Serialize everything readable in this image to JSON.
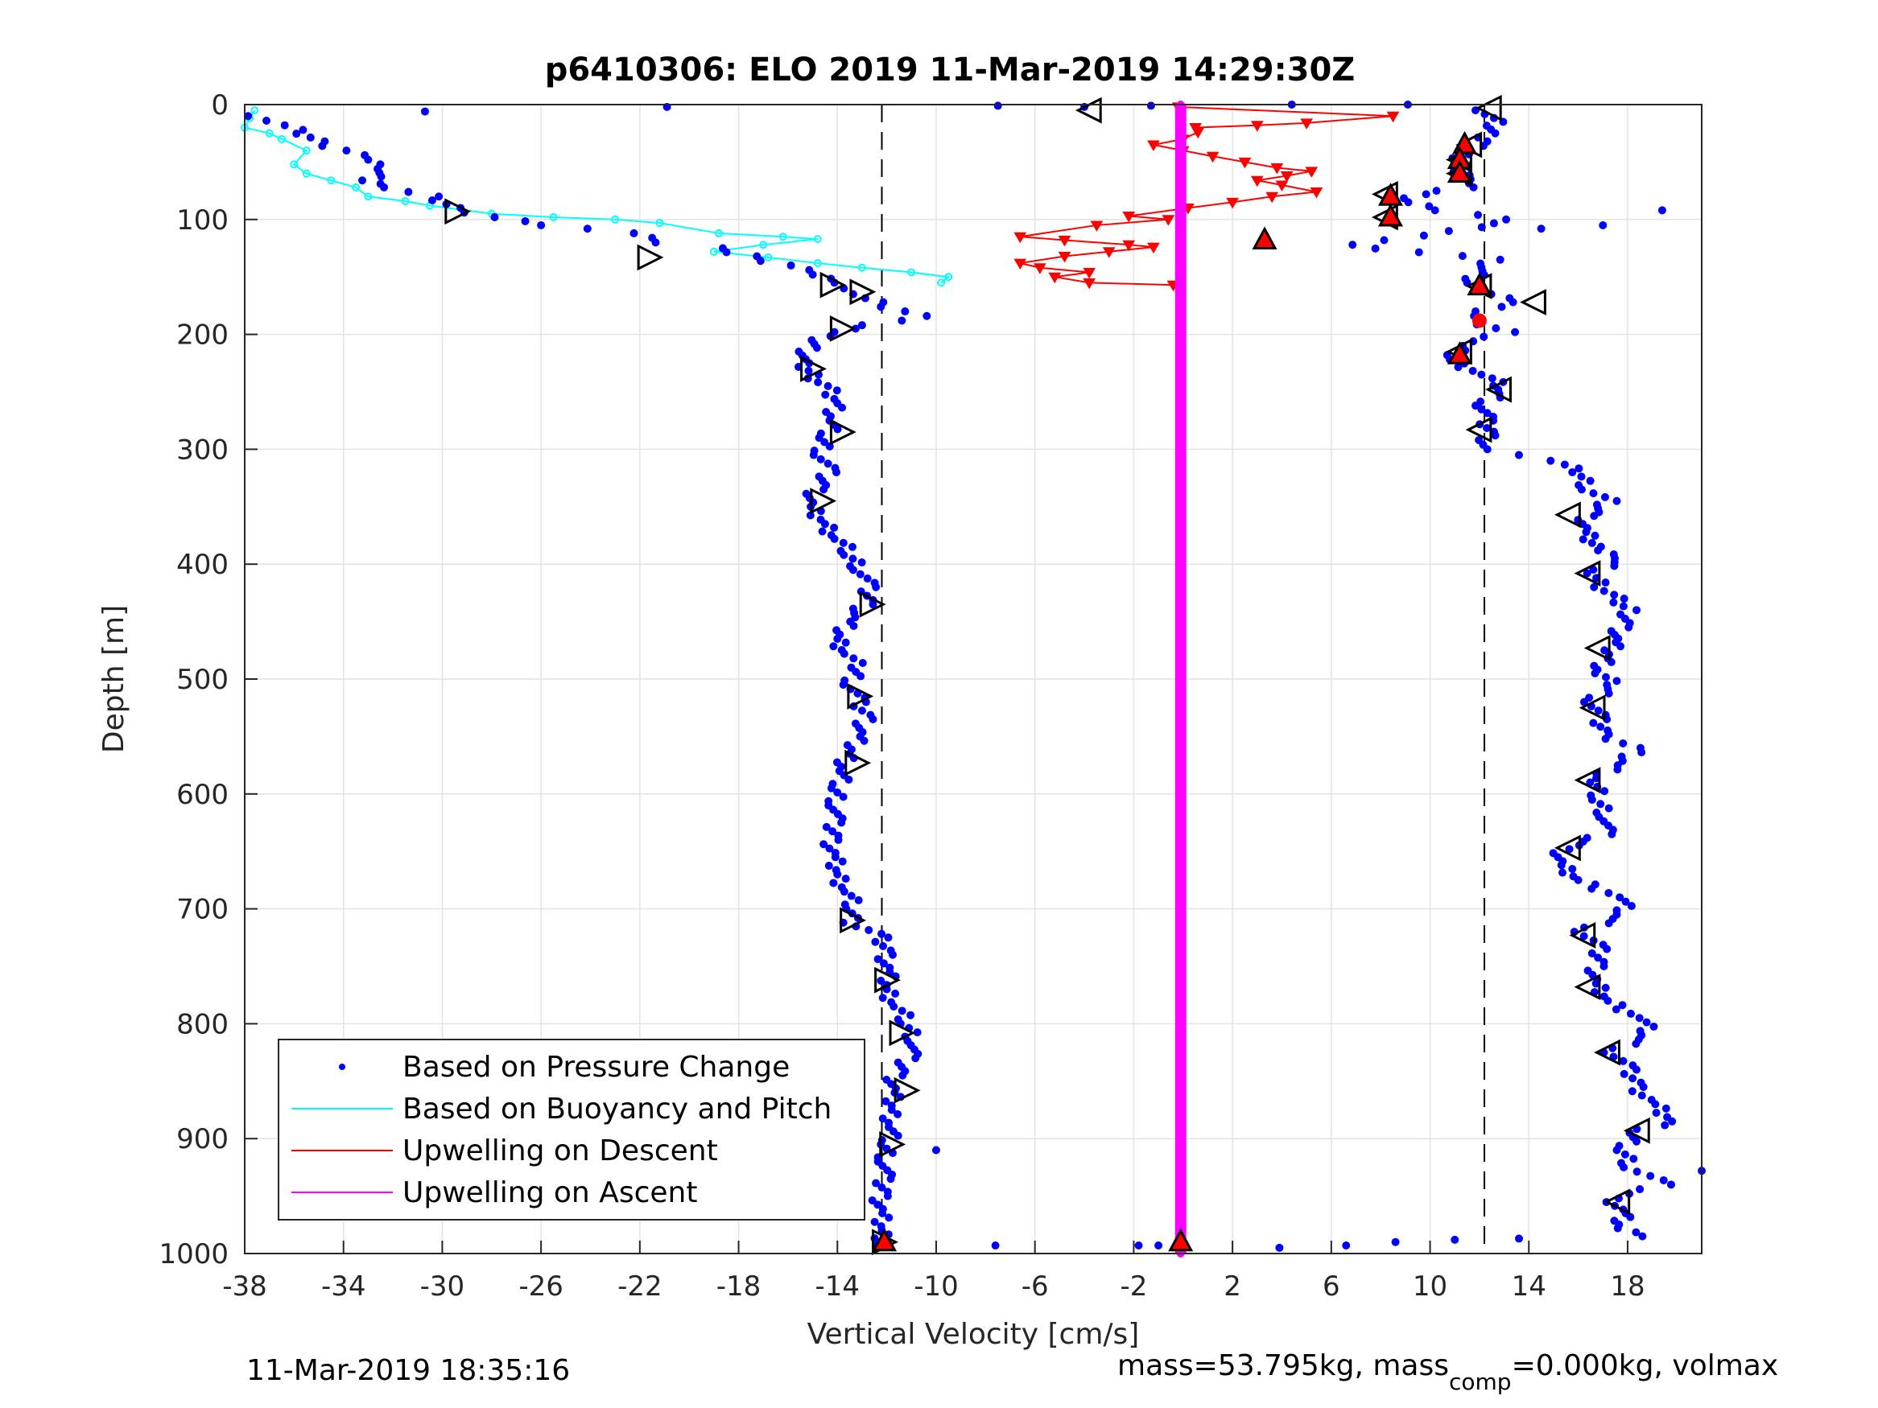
{
  "chart_data": {
    "type": "scatter",
    "title": "p6410306: ELO 2019 11-Mar-2019 14:29:30Z",
    "xlabel": "Vertical Velocity [cm/s]",
    "ylabel": "Depth [m]",
    "xlim": [
      -38,
      21
    ],
    "ylim": [
      0,
      1000
    ],
    "y_reversed": true,
    "x_ticks": [
      -38,
      -34,
      -30,
      -26,
      -22,
      -18,
      -14,
      -10,
      -6,
      -2,
      2,
      6,
      10,
      14,
      18
    ],
    "y_ticks": [
      0,
      100,
      200,
      300,
      400,
      500,
      600,
      700,
      800,
      900,
      1000
    ],
    "grid": true,
    "legend_position": "bottom-left",
    "legend": [
      {
        "label": "Based on Pressure Change",
        "color": "#0000ff",
        "style": "dot"
      },
      {
        "label": "Based on Buoyancy and Pitch",
        "color": "#00ffff",
        "style": "line"
      },
      {
        "label": "Upwelling on Descent",
        "color": "#ff0000",
        "style": "line"
      },
      {
        "label": "Upwelling on Ascent",
        "color": "#ff00ff",
        "style": "line"
      }
    ],
    "reference_lines": [
      {
        "x": -12.2,
        "style": "dashed",
        "color": "#000000"
      },
      {
        "x": 12.2,
        "style": "dashed",
        "color": "#000000"
      }
    ],
    "series": [
      {
        "name": "Based on Pressure Change",
        "color": "#0000ff",
        "descent": [
          [
            -37.5,
            10
          ],
          [
            -36,
            22
          ],
          [
            -35,
            32
          ],
          [
            -34,
            40
          ],
          [
            -33,
            48
          ],
          [
            -32.5,
            56
          ],
          [
            -33,
            66
          ],
          [
            -32,
            72
          ],
          [
            -30.5,
            80
          ],
          [
            -29.5,
            90
          ],
          [
            -28,
            98
          ],
          [
            -26,
            105
          ],
          [
            -24,
            108
          ],
          [
            -22,
            112
          ],
          [
            -21,
            120
          ],
          [
            -19,
            125
          ],
          [
            -17.5,
            132
          ],
          [
            -16,
            140
          ],
          [
            -15,
            148
          ],
          [
            -14,
            155
          ],
          [
            -13.5,
            160
          ],
          [
            -13,
            165
          ],
          [
            -12.5,
            172
          ],
          [
            -11.5,
            180
          ],
          [
            -10.5,
            184
          ],
          [
            -13,
            192
          ],
          [
            -14,
            198
          ],
          [
            -14.8,
            205
          ],
          [
            -15.2,
            215
          ],
          [
            -15.5,
            225
          ],
          [
            -15,
            235
          ],
          [
            -14.5,
            245
          ],
          [
            -14,
            260
          ],
          [
            -14.2,
            275
          ],
          [
            -14.5,
            290
          ],
          [
            -14.6,
            305
          ],
          [
            -14.4,
            320
          ],
          [
            -14.8,
            335
          ],
          [
            -15.2,
            350
          ],
          [
            -14.5,
            365
          ],
          [
            -14,
            378
          ],
          [
            -13.5,
            392
          ],
          [
            -13,
            405
          ],
          [
            -12.8,
            420
          ],
          [
            -12.8,
            435
          ],
          [
            -13.6,
            450
          ],
          [
            -14,
            465
          ],
          [
            -13.6,
            478
          ],
          [
            -13.2,
            490
          ],
          [
            -13.4,
            505
          ],
          [
            -13.2,
            520
          ],
          [
            -12.8,
            535
          ],
          [
            -13.2,
            550
          ],
          [
            -13.5,
            565
          ],
          [
            -13.8,
            580
          ],
          [
            -14,
            595
          ],
          [
            -14,
            610
          ],
          [
            -14.2,
            625
          ],
          [
            -14.2,
            640
          ],
          [
            -14.2,
            655
          ],
          [
            -14,
            670
          ],
          [
            -13.6,
            685
          ],
          [
            -13.4,
            700
          ],
          [
            -13.4,
            712
          ],
          [
            -12.3,
            725
          ],
          [
            -12,
            740
          ],
          [
            -12,
            755
          ],
          [
            -12,
            770
          ],
          [
            -11.6,
            785
          ],
          [
            -11.2,
            800
          ],
          [
            -10.8,
            815
          ],
          [
            -11.2,
            830
          ],
          [
            -11.6,
            845
          ],
          [
            -11.8,
            860
          ],
          [
            -11.8,
            875
          ],
          [
            -11.8,
            890
          ],
          [
            -12,
            905
          ],
          [
            -12,
            920
          ],
          [
            -12.2,
            935
          ],
          [
            -12.2,
            950
          ],
          [
            -12.3,
            965
          ],
          [
            -12.2,
            980
          ],
          [
            -12.1,
            990
          ]
        ],
        "ascent": [
          [
            12.2,
            5
          ],
          [
            12.6,
            15
          ],
          [
            12.4,
            25
          ],
          [
            12.2,
            32
          ],
          [
            11.4,
            40
          ],
          [
            11.2,
            50
          ],
          [
            11.2,
            58
          ],
          [
            12,
            65
          ],
          [
            11.4,
            72
          ],
          [
            9.6,
            78
          ],
          [
            9,
            85
          ],
          [
            10.2,
            92
          ],
          [
            13.2,
            100
          ],
          [
            11,
            110
          ],
          [
            8.5,
            118
          ],
          [
            6.5,
            122
          ],
          [
            12.6,
            135
          ],
          [
            12,
            145
          ],
          [
            11.5,
            155
          ],
          [
            12.6,
            165
          ],
          [
            13.6,
            172
          ],
          [
            12.2,
            180
          ],
          [
            11.6,
            188
          ],
          [
            13.2,
            198
          ],
          [
            11.2,
            210
          ],
          [
            10.8,
            222
          ],
          [
            12.2,
            235
          ],
          [
            13,
            248
          ],
          [
            12.2,
            262
          ],
          [
            12.2,
            275
          ],
          [
            12.4,
            288
          ],
          [
            12.2,
            300
          ],
          [
            13.6,
            305
          ],
          [
            15,
            310
          ],
          [
            16,
            320
          ],
          [
            16.5,
            335
          ],
          [
            17.2,
            345
          ],
          [
            16.4,
            358
          ],
          [
            16.2,
            372
          ],
          [
            16.8,
            388
          ],
          [
            17.6,
            395
          ],
          [
            16.6,
            408
          ],
          [
            17,
            420
          ],
          [
            18,
            440
          ],
          [
            17.8,
            455
          ],
          [
            17.4,
            468
          ],
          [
            17.2,
            482
          ],
          [
            16.8,
            495
          ],
          [
            17.4,
            505
          ],
          [
            16.6,
            520
          ],
          [
            16.8,
            535
          ],
          [
            17,
            548
          ],
          [
            18.4,
            560
          ],
          [
            17.6,
            575
          ],
          [
            16.6,
            590
          ],
          [
            16.8,
            605
          ],
          [
            17.2,
            620
          ],
          [
            17,
            635
          ],
          [
            15.4,
            648
          ],
          [
            15.2,
            662
          ],
          [
            16,
            675
          ],
          [
            17.8,
            690
          ],
          [
            17.8,
            705
          ],
          [
            16.2,
            720
          ],
          [
            16.8,
            735
          ],
          [
            16.8,
            750
          ],
          [
            16.6,
            765
          ],
          [
            17.2,
            780
          ],
          [
            18.6,
            795
          ],
          [
            18.8,
            810
          ],
          [
            17.4,
            825
          ],
          [
            18,
            840
          ],
          [
            18.4,
            855
          ],
          [
            19,
            870
          ],
          [
            19.8,
            885
          ],
          [
            18.2,
            895
          ],
          [
            17.8,
            910
          ],
          [
            18.2,
            925
          ],
          [
            19.4,
            940
          ],
          [
            17.4,
            952
          ],
          [
            17.8,
            965
          ],
          [
            17.6,
            978
          ],
          [
            18.6,
            985
          ]
        ],
        "outliers": [
          [
            -30.7,
            6
          ],
          [
            -20.9,
            2
          ],
          [
            -7.5,
            1
          ],
          [
            -4,
            2
          ],
          [
            -1.3,
            1
          ],
          [
            4.4,
            0
          ],
          [
            9.1,
            0
          ],
          [
            14.5,
            108
          ],
          [
            17,
            105
          ],
          [
            19.4,
            92
          ],
          [
            21,
            928
          ],
          [
            13.6,
            987
          ],
          [
            8.6,
            990
          ],
          [
            11,
            988
          ],
          [
            6.6,
            993
          ],
          [
            -15,
            905
          ],
          [
            -10,
            910
          ],
          [
            -12.4,
            993
          ],
          [
            -7.6,
            993
          ],
          [
            -1.8,
            993
          ],
          [
            -1,
            993
          ],
          [
            3.9,
            995
          ],
          [
            -12.2,
            990
          ]
        ]
      },
      {
        "name": "Based on Buoyancy and Pitch",
        "color": "#00ffff",
        "values": [
          [
            -37.6,
            5
          ],
          [
            -37.8,
            12
          ],
          [
            -38,
            20
          ],
          [
            -37,
            25
          ],
          [
            -36.5,
            30
          ],
          [
            -35.5,
            40
          ],
          [
            -36,
            52
          ],
          [
            -35.5,
            60
          ],
          [
            -34.5,
            66
          ],
          [
            -33.5,
            72
          ],
          [
            -33,
            80
          ],
          [
            -31.5,
            84
          ],
          [
            -30.5,
            88
          ],
          [
            -28,
            95
          ],
          [
            -25.5,
            98
          ],
          [
            -23,
            100
          ],
          [
            -21.2,
            103
          ],
          [
            -18.8,
            112
          ],
          [
            -16.2,
            115
          ],
          [
            -14.8,
            117
          ],
          [
            -17,
            122
          ],
          [
            -19,
            128
          ],
          [
            -16.8,
            133
          ],
          [
            -14.8,
            138
          ],
          [
            -13,
            142
          ],
          [
            -11,
            146
          ],
          [
            -9.5,
            150
          ],
          [
            -9.8,
            155
          ]
        ]
      },
      {
        "name": "Upwelling on Descent",
        "color": "#ff0000",
        "values": [
          [
            -0.2,
            2
          ],
          [
            8.5,
            10
          ],
          [
            5,
            16
          ],
          [
            3,
            18
          ],
          [
            0.5,
            20
          ],
          [
            0.6,
            24
          ],
          [
            0,
            30
          ],
          [
            -1.2,
            35
          ],
          [
            0,
            40
          ],
          [
            1.2,
            45
          ],
          [
            2.5,
            50
          ],
          [
            3.8,
            55
          ],
          [
            5.2,
            58
          ],
          [
            4.2,
            62
          ],
          [
            3,
            66
          ],
          [
            4,
            70
          ],
          [
            5.4,
            76
          ],
          [
            3.6,
            80
          ],
          [
            2,
            85
          ],
          [
            0.2,
            90
          ],
          [
            -2.2,
            97
          ],
          [
            -0.6,
            100
          ],
          [
            -3.5,
            105
          ],
          [
            -6.6,
            115
          ],
          [
            -4.8,
            118
          ],
          [
            -2.2,
            122
          ],
          [
            -1.2,
            124
          ],
          [
            -3,
            128
          ],
          [
            -4.8,
            132
          ],
          [
            -6.6,
            138
          ],
          [
            -5.8,
            142
          ],
          [
            -3.8,
            146
          ],
          [
            -5.2,
            150
          ],
          [
            -3.8,
            155
          ],
          [
            -0.4,
            157
          ]
        ]
      },
      {
        "name": "Upwelling on Ascent",
        "color": "#ff00ff",
        "values": [
          [
            -0.1,
            0
          ],
          [
            -0.1,
            1000
          ]
        ]
      }
    ],
    "markers": {
      "descent_triangles": [
        [
          -29.4,
          93
        ],
        [
          -21.6,
          133
        ],
        [
          -14.2,
          157
        ],
        [
          -13,
          163
        ],
        [
          -13.8,
          195
        ],
        [
          -15,
          230
        ],
        [
          -13.8,
          285
        ],
        [
          -14.6,
          345
        ],
        [
          -12.6,
          435
        ],
        [
          -13.1,
          515
        ],
        [
          -13.2,
          573
        ],
        [
          -13.4,
          710
        ],
        [
          -12,
          762
        ],
        [
          -11.4,
          808
        ],
        [
          -11.2,
          858
        ],
        [
          -11.8,
          905
        ],
        [
          -12.1,
          990
        ]
      ],
      "ascent_triangles": [
        [
          -3.8,
          5
        ],
        [
          12.4,
          3
        ],
        [
          11.6,
          35
        ],
        [
          11.2,
          48
        ],
        [
          11.2,
          60
        ],
        [
          8.2,
          78
        ],
        [
          8.2,
          98
        ],
        [
          12,
          158
        ],
        [
          14.2,
          172
        ],
        [
          11.2,
          215
        ],
        [
          12.8,
          248
        ],
        [
          12,
          283
        ],
        [
          15.6,
          357
        ],
        [
          16.4,
          408
        ],
        [
          16.8,
          473
        ],
        [
          16.6,
          525
        ],
        [
          16.4,
          588
        ],
        [
          15.6,
          647
        ],
        [
          16.2,
          723
        ],
        [
          16.4,
          768
        ],
        [
          17.2,
          825
        ],
        [
          18.4,
          893
        ],
        [
          17.6,
          955
        ]
      ],
      "red_triangles": [
        [
          3.3,
          118
        ],
        [
          8.4,
          80
        ],
        [
          8.4,
          98
        ],
        [
          11.4,
          35
        ],
        [
          11.2,
          48
        ],
        [
          11.2,
          60
        ],
        [
          12,
          158
        ],
        [
          11.2,
          218
        ],
        [
          -12.1,
          990
        ],
        [
          -0.1,
          990
        ]
      ],
      "red_dots": [
        [
          12,
          188
        ]
      ]
    }
  },
  "footer": {
    "timestamp": "11-Mar-2019 18:35:16",
    "mass_text_1": "mass=53.795kg, mass",
    "mass_sub": "comp",
    "mass_text_2": "=0.000kg, volmax"
  }
}
